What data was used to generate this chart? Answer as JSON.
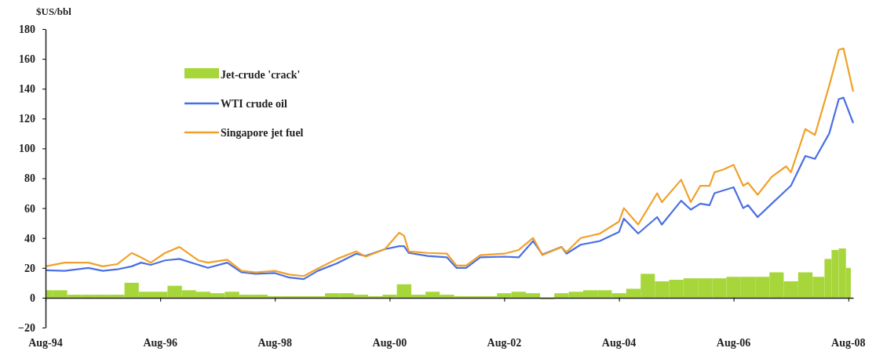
{
  "chart_data": {
    "type": "line",
    "ylabel": "$US/bbl",
    "xlim": [
      "1994-08",
      "2008-09"
    ],
    "ylim": [
      -20,
      180
    ],
    "yticks": [
      -20,
      0,
      20,
      40,
      60,
      80,
      100,
      120,
      140,
      160,
      180
    ],
    "xticks": [
      {
        "value": "1994-08",
        "label": "Aug-94"
      },
      {
        "value": "1996-08",
        "label": "Aug-96"
      },
      {
        "value": "1998-08",
        "label": "Aug-98"
      },
      {
        "value": "2000-08",
        "label": "Aug-00"
      },
      {
        "value": "2002-08",
        "label": "Aug-02"
      },
      {
        "value": "2004-08",
        "label": "Aug-04"
      },
      {
        "value": "2006-08",
        "label": "Aug-06"
      },
      {
        "value": "2008-08",
        "label": "Aug-08"
      }
    ],
    "legend": "top left",
    "series": [
      {
        "name": "Jet-crude 'crack'",
        "type": "bar",
        "color": "#a6d63a",
        "x": [
          "1994-08",
          "1994-11",
          "1995-02",
          "1995-05",
          "1995-08",
          "1995-11",
          "1996-02",
          "1996-05",
          "1996-08",
          "1996-11",
          "1997-02",
          "1997-05",
          "1997-08",
          "1997-11",
          "1998-02",
          "1998-05",
          "1998-08",
          "1998-11",
          "1999-02",
          "1999-05",
          "1999-08",
          "1999-11",
          "2000-02",
          "2000-05",
          "2000-08",
          "2000-11",
          "2001-02",
          "2001-05",
          "2001-08",
          "2001-11",
          "2002-02",
          "2002-05",
          "2002-08",
          "2002-11",
          "2003-02",
          "2003-05",
          "2003-08",
          "2003-11",
          "2004-02",
          "2004-05",
          "2004-08",
          "2004-11",
          "2005-02",
          "2005-05",
          "2005-08",
          "2005-11",
          "2006-02",
          "2006-05",
          "2006-08",
          "2006-11",
          "2007-02",
          "2007-05",
          "2007-08",
          "2007-11",
          "2008-02",
          "2008-04",
          "2008-05",
          "2008-07",
          "2008-08"
        ],
        "values": [
          5,
          5,
          2,
          2,
          2,
          2,
          10,
          4,
          4,
          8,
          5,
          4,
          3,
          4,
          2,
          2,
          1,
          1,
          1,
          1,
          3,
          3,
          2,
          1,
          2,
          9,
          2,
          4,
          2,
          1,
          1,
          1,
          3,
          4,
          3,
          -1,
          3,
          4,
          5,
          5,
          3,
          6,
          16,
          11,
          12,
          13,
          13,
          13,
          14,
          14,
          14,
          17,
          11,
          17,
          14,
          26,
          32,
          33,
          20
        ]
      },
      {
        "name": "WTI crude oil",
        "color": "#4a6fe3",
        "x": [
          "1994-08",
          "1994-12",
          "1995-05",
          "1995-08",
          "1995-11",
          "1996-02",
          "1996-04",
          "1996-06",
          "1996-09",
          "1996-12",
          "1997-04",
          "1997-06",
          "1997-10",
          "1998-01",
          "1998-04",
          "1998-08",
          "1998-11",
          "1999-02",
          "1999-05",
          "1999-09",
          "2000-01",
          "2000-03",
          "2000-07",
          "2000-10",
          "2000-11",
          "2000-12",
          "2001-04",
          "2001-08",
          "2001-10",
          "2001-12",
          "2002-03",
          "2002-08",
          "2002-11",
          "2003-02",
          "2003-04",
          "2003-08",
          "2003-09",
          "2003-12",
          "2004-04",
          "2004-08",
          "2004-09",
          "2004-12",
          "2005-04",
          "2005-05",
          "2005-09",
          "2005-11",
          "2006-01",
          "2006-03",
          "2006-04",
          "2006-06",
          "2006-08",
          "2006-10",
          "2006-11",
          "2007-01",
          "2007-04",
          "2007-07",
          "2007-08",
          "2007-11",
          "2008-01",
          "2008-04",
          "2008-06",
          "2008-07",
          "2008-09"
        ],
        "values": [
          18.4,
          18,
          20,
          18,
          19,
          21,
          23.5,
          22,
          25,
          26,
          22,
          20,
          23.5,
          17,
          16,
          16.5,
          13.5,
          12.5,
          18,
          23,
          29.5,
          28,
          32.5,
          34.5,
          34.5,
          30,
          28,
          27,
          20,
          20,
          27,
          27.5,
          27,
          38,
          29,
          34,
          29.5,
          35.5,
          38,
          44,
          53,
          43,
          54,
          49,
          65,
          59,
          63,
          62,
          70,
          72,
          74,
          60,
          62,
          54,
          63,
          72,
          75,
          95,
          93,
          110,
          133,
          134,
          117
        ]
      },
      {
        "name": "Singapore jet fuel",
        "color": "#f0a12a",
        "x": [
          "1994-08",
          "1994-12",
          "1995-05",
          "1995-08",
          "1995-11",
          "1996-02",
          "1996-04",
          "1996-06",
          "1996-09",
          "1996-12",
          "1997-04",
          "1997-06",
          "1997-10",
          "1998-01",
          "1998-04",
          "1998-08",
          "1998-11",
          "1999-02",
          "1999-05",
          "1999-09",
          "2000-01",
          "2000-03",
          "2000-07",
          "2000-10",
          "2000-11",
          "2000-12",
          "2001-04",
          "2001-08",
          "2001-10",
          "2001-12",
          "2002-03",
          "2002-08",
          "2002-11",
          "2003-02",
          "2003-04",
          "2003-08",
          "2003-09",
          "2003-12",
          "2004-04",
          "2004-08",
          "2004-09",
          "2004-12",
          "2005-04",
          "2005-05",
          "2005-09",
          "2005-11",
          "2006-01",
          "2006-03",
          "2006-04",
          "2006-06",
          "2006-08",
          "2006-10",
          "2006-11",
          "2007-01",
          "2007-04",
          "2007-07",
          "2007-08",
          "2007-11",
          "2008-01",
          "2008-04",
          "2008-06",
          "2008-07",
          "2008-09"
        ],
        "values": [
          21,
          23.5,
          23.5,
          21,
          22.5,
          30,
          27,
          23.5,
          30,
          34,
          25,
          23.5,
          25.5,
          18,
          17,
          18,
          15.5,
          14.5,
          19.5,
          26,
          31,
          27.5,
          32.5,
          43.5,
          41.5,
          31,
          30,
          29.5,
          21.5,
          21.5,
          28.5,
          29.5,
          32,
          40,
          28.5,
          34,
          30.5,
          40,
          43,
          51,
          60,
          49,
          70,
          64,
          79,
          64,
          75,
          75,
          84,
          86,
          89,
          75,
          77,
          69,
          81,
          88,
          84,
          113,
          109,
          142,
          166,
          167,
          138
        ]
      }
    ]
  }
}
